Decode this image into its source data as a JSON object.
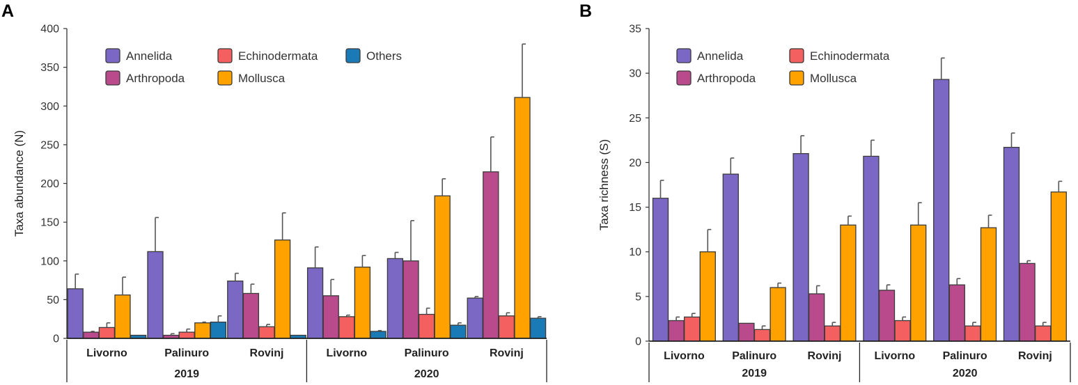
{
  "chart_data": [
    {
      "type": "bar",
      "panel_label": "A",
      "ylabel": "Taxa abundance (N)",
      "ylim": [
        0,
        400
      ],
      "yticks": [
        0,
        50,
        100,
        150,
        200,
        250,
        300,
        350,
        400
      ],
      "categories": [
        "Livorno",
        "Palinuro",
        "Rovinj",
        "Livorno",
        "Palinuro",
        "Rovinj"
      ],
      "years": [
        "2019",
        "2020"
      ],
      "series": [
        {
          "name": "Annelida",
          "color": "#7b68c4",
          "values": [
            64,
            112,
            74,
            91,
            103,
            52
          ],
          "errors": [
            19,
            44,
            10,
            27,
            8,
            2
          ]
        },
        {
          "name": "Arthropoda",
          "color": "#b94a8b",
          "values": [
            8,
            4,
            58,
            55,
            100,
            215
          ],
          "errors": [
            1,
            2,
            12,
            21,
            52,
            45
          ]
        },
        {
          "name": "Echinodermata",
          "color": "#f4605f",
          "values": [
            14,
            8,
            15,
            28,
            31,
            29
          ],
          "errors": [
            6,
            4,
            3,
            2,
            8,
            4
          ]
        },
        {
          "name": "Mollusca",
          "color": "#ffa200",
          "values": [
            56,
            20,
            127,
            92,
            184,
            311
          ],
          "errors": [
            23,
            1,
            35,
            15,
            22,
            69
          ]
        },
        {
          "name": "Others",
          "color": "#1a7ab5",
          "values": [
            4,
            21,
            4,
            9,
            17,
            26
          ],
          "errors": [
            0,
            8,
            0,
            1,
            3,
            2
          ]
        }
      ],
      "legend_position": "top"
    },
    {
      "type": "bar",
      "panel_label": "B",
      "ylabel": "Taxa richness (S)",
      "ylim": [
        0,
        35
      ],
      "yticks": [
        0,
        5,
        10,
        15,
        20,
        25,
        30,
        35
      ],
      "categories": [
        "Livorno",
        "Palinuro",
        "Rovinj",
        "Livorno",
        "Palinuro",
        "Rovinj"
      ],
      "years": [
        "2019",
        "2020"
      ],
      "series": [
        {
          "name": "Annelida",
          "color": "#7b68c4",
          "values": [
            16,
            18.7,
            21,
            20.7,
            29.3,
            21.7
          ],
          "errors": [
            2,
            1.8,
            2,
            1.8,
            2.4,
            1.6
          ]
        },
        {
          "name": "Arthropoda",
          "color": "#b94a8b",
          "values": [
            2.3,
            2,
            5.3,
            5.7,
            6.3,
            8.7
          ],
          "errors": [
            0.4,
            0,
            0.9,
            0.6,
            0.7,
            0.3
          ]
        },
        {
          "name": "Echinodermata",
          "color": "#f4605f",
          "values": [
            2.7,
            1.3,
            1.7,
            2.3,
            1.7,
            1.7
          ],
          "errors": [
            0.4,
            0.4,
            0.4,
            0.4,
            0.4,
            0.4
          ]
        },
        {
          "name": "Mollusca",
          "color": "#ffa200",
          "values": [
            10,
            6,
            13,
            13,
            12.7,
            16.7
          ],
          "errors": [
            2.5,
            0.5,
            1,
            2.5,
            1.4,
            1.2
          ]
        }
      ],
      "legend_position": "top"
    }
  ]
}
